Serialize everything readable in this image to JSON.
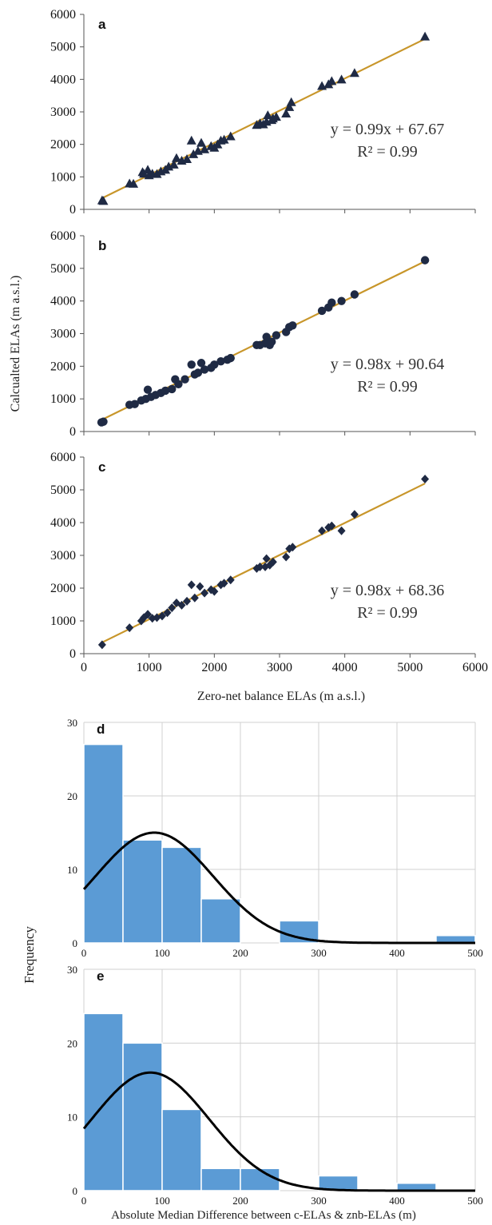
{
  "axis_labels": {
    "scatter_y": "Calcualted ELAs (m a.s.l.)",
    "scatter_x": "Zero-net balance ELAs (m a.s.l.)",
    "hist_y": "Frequency",
    "hist_x": "Absolute Median Difference between c-ELAs & znb-ELAs (m)"
  },
  "colors": {
    "marker": "#1f2a44",
    "trend": "#c8962a",
    "bar": "#5b9bd5",
    "normal_curve": "#000000",
    "grid": "#d0d0d0"
  },
  "chart_data": [
    {
      "panel": "a",
      "type": "scatter",
      "marker": "triangle",
      "xlim": [
        0,
        6000
      ],
      "ylim": [
        0,
        6000
      ],
      "xticks": [
        0,
        1000,
        2000,
        3000,
        4000,
        5000,
        6000
      ],
      "yticks": [
        "0",
        "1000",
        "2000",
        "3000",
        "4000",
        "5000",
        "6000"
      ],
      "show_xticks": false,
      "trendline": {
        "slope": 0.99,
        "intercept": 67.67,
        "x_range": [
          280,
          5230
        ]
      },
      "equation": "y = 0.99x + 67.67",
      "r2": "R² = 0.99",
      "points": [
        [
          280,
          280
        ],
        [
          300,
          260
        ],
        [
          700,
          800
        ],
        [
          760,
          790
        ],
        [
          900,
          1150
        ],
        [
          920,
          1100
        ],
        [
          980,
          1220
        ],
        [
          1000,
          1050
        ],
        [
          1050,
          1100
        ],
        [
          1120,
          1090
        ],
        [
          1180,
          1170
        ],
        [
          1250,
          1220
        ],
        [
          1300,
          1320
        ],
        [
          1380,
          1380
        ],
        [
          1420,
          1580
        ],
        [
          1500,
          1500
        ],
        [
          1580,
          1550
        ],
        [
          1650,
          2120
        ],
        [
          1680,
          1700
        ],
        [
          1750,
          1800
        ],
        [
          1800,
          2050
        ],
        [
          1850,
          1850
        ],
        [
          1950,
          1950
        ],
        [
          2000,
          1900
        ],
        [
          2050,
          2000
        ],
        [
          2100,
          2120
        ],
        [
          2150,
          2150
        ],
        [
          2250,
          2250
        ],
        [
          2650,
          2600
        ],
        [
          2700,
          2650
        ],
        [
          2750,
          2620
        ],
        [
          2800,
          2700
        ],
        [
          2820,
          2900
        ],
        [
          2880,
          2750
        ],
        [
          2900,
          2800
        ],
        [
          2950,
          2850
        ],
        [
          3100,
          2950
        ],
        [
          3150,
          3150
        ],
        [
          3180,
          3300
        ],
        [
          3650,
          3800
        ],
        [
          3750,
          3850
        ],
        [
          3800,
          3950
        ],
        [
          3950,
          4000
        ],
        [
          4150,
          4200
        ],
        [
          5230,
          5320
        ]
      ]
    },
    {
      "panel": "b",
      "type": "scatter",
      "marker": "circle",
      "xlim": [
        0,
        6000
      ],
      "ylim": [
        0,
        6000
      ],
      "xticks": [
        0,
        1000,
        2000,
        3000,
        4000,
        5000,
        6000
      ],
      "yticks": [
        "0",
        "1000",
        "2000",
        "3000",
        "4000",
        "5000",
        "6000"
      ],
      "show_xticks": false,
      "trendline": {
        "slope": 0.98,
        "intercept": 90.64,
        "x_range": [
          280,
          5230
        ]
      },
      "equation": "y = 0.98x + 90.64",
      "r2": "R² = 0.99",
      "points": [
        [
          270,
          280
        ],
        [
          300,
          300
        ],
        [
          700,
          820
        ],
        [
          780,
          840
        ],
        [
          880,
          950
        ],
        [
          950,
          1000
        ],
        [
          980,
          1280
        ],
        [
          1030,
          1060
        ],
        [
          1100,
          1120
        ],
        [
          1180,
          1180
        ],
        [
          1250,
          1250
        ],
        [
          1350,
          1300
        ],
        [
          1400,
          1600
        ],
        [
          1450,
          1450
        ],
        [
          1550,
          1600
        ],
        [
          1650,
          2050
        ],
        [
          1700,
          1750
        ],
        [
          1750,
          1800
        ],
        [
          1800,
          2100
        ],
        [
          1850,
          1900
        ],
        [
          1950,
          1950
        ],
        [
          2000,
          2050
        ],
        [
          2100,
          2150
        ],
        [
          2200,
          2200
        ],
        [
          2250,
          2250
        ],
        [
          2650,
          2650
        ],
        [
          2700,
          2650
        ],
        [
          2780,
          2700
        ],
        [
          2800,
          2900
        ],
        [
          2850,
          2650
        ],
        [
          2880,
          2750
        ],
        [
          2950,
          2950
        ],
        [
          3100,
          3050
        ],
        [
          3150,
          3200
        ],
        [
          3200,
          3250
        ],
        [
          3650,
          3700
        ],
        [
          3750,
          3800
        ],
        [
          3800,
          3950
        ],
        [
          3950,
          4000
        ],
        [
          4150,
          4200
        ],
        [
          5230,
          5250
        ]
      ]
    },
    {
      "panel": "c",
      "type": "scatter",
      "marker": "diamond",
      "xlim": [
        0,
        6000
      ],
      "ylim": [
        0,
        6000
      ],
      "xticks": [
        "0",
        "1000",
        "2000",
        "3000",
        "4000",
        "5000",
        "6000"
      ],
      "yticks": [
        "0",
        "1000",
        "2000",
        "3000",
        "4000",
        "5000",
        "6000"
      ],
      "show_xticks": true,
      "trendline": {
        "slope": 0.98,
        "intercept": 68.36,
        "x_range": [
          280,
          5230
        ]
      },
      "equation": "y = 0.98x + 68.36",
      "r2": "R² = 0.99",
      "points": [
        [
          280,
          270
        ],
        [
          700,
          790
        ],
        [
          880,
          1000
        ],
        [
          920,
          1100
        ],
        [
          980,
          1200
        ],
        [
          1050,
          1080
        ],
        [
          1120,
          1100
        ],
        [
          1200,
          1150
        ],
        [
          1280,
          1250
        ],
        [
          1350,
          1400
        ],
        [
          1420,
          1550
        ],
        [
          1500,
          1480
        ],
        [
          1580,
          1600
        ],
        [
          1650,
          2100
        ],
        [
          1700,
          1700
        ],
        [
          1780,
          2050
        ],
        [
          1850,
          1850
        ],
        [
          1950,
          1950
        ],
        [
          2000,
          1900
        ],
        [
          2100,
          2100
        ],
        [
          2150,
          2150
        ],
        [
          2250,
          2250
        ],
        [
          2650,
          2600
        ],
        [
          2700,
          2650
        ],
        [
          2780,
          2650
        ],
        [
          2800,
          2900
        ],
        [
          2850,
          2700
        ],
        [
          2900,
          2800
        ],
        [
          3100,
          2950
        ],
        [
          3150,
          3200
        ],
        [
          3200,
          3250
        ],
        [
          3650,
          3750
        ],
        [
          3750,
          3850
        ],
        [
          3800,
          3900
        ],
        [
          3950,
          3750
        ],
        [
          4150,
          4250
        ],
        [
          5230,
          5330
        ]
      ]
    },
    {
      "panel": "d",
      "type": "bar",
      "xlim": [
        0,
        500
      ],
      "ylim": [
        0,
        30
      ],
      "xticks": [
        "0",
        "100",
        "200",
        "300",
        "400",
        "500"
      ],
      "yticks": [
        "0",
        "10",
        "20",
        "30"
      ],
      "bins": [
        [
          0,
          50
        ],
        [
          50,
          100
        ],
        [
          100,
          150
        ],
        [
          150,
          200
        ],
        [
          200,
          250
        ],
        [
          250,
          300
        ],
        [
          300,
          350
        ],
        [
          350,
          400
        ],
        [
          400,
          450
        ],
        [
          450,
          500
        ]
      ],
      "values": [
        27,
        14,
        13,
        6,
        0,
        3,
        0,
        0,
        0,
        1
      ],
      "normal_curve": {
        "mean": 90,
        "sd": 75,
        "peak": 15
      }
    },
    {
      "panel": "e",
      "type": "bar",
      "xlim": [
        0,
        500
      ],
      "ylim": [
        0,
        30
      ],
      "xticks": [
        "0",
        "100",
        "200",
        "300",
        "400",
        "500"
      ],
      "yticks": [
        "0",
        "10",
        "20",
        "30"
      ],
      "bins": [
        [
          0,
          50
        ],
        [
          50,
          100
        ],
        [
          100,
          150
        ],
        [
          150,
          200
        ],
        [
          200,
          250
        ],
        [
          250,
          300
        ],
        [
          300,
          350
        ],
        [
          350,
          400
        ],
        [
          400,
          450
        ],
        [
          450,
          500
        ]
      ],
      "values": [
        24,
        20,
        11,
        3,
        3,
        0,
        2,
        0,
        1,
        0
      ],
      "normal_curve": {
        "mean": 85,
        "sd": 75,
        "peak": 16
      }
    }
  ]
}
